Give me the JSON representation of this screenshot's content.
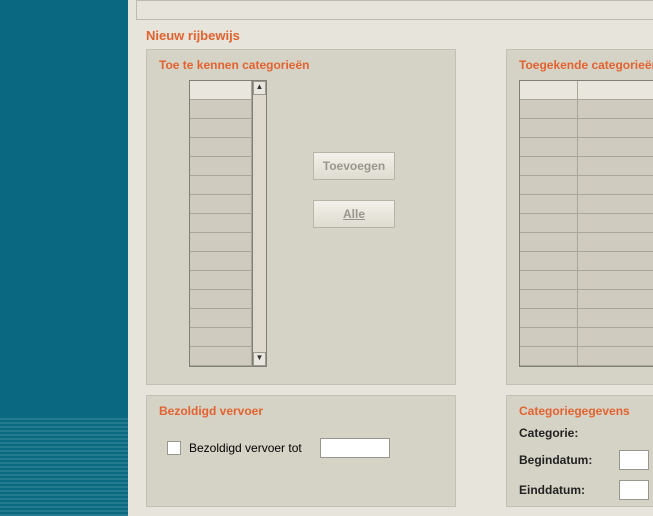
{
  "page": {
    "title": "Nieuw rijbewijs"
  },
  "left_panel": {
    "title": "Toe te kennen categorieën",
    "listbox": {
      "row_count": 15
    },
    "buttons": {
      "add": "Toevoegen",
      "all": "Alle"
    }
  },
  "right_panel": {
    "title": "Toegekende categorieën",
    "grid": {
      "row_count": 15,
      "col_count": 2
    }
  },
  "bottom_left": {
    "title": "Bezoldigd vervoer",
    "checkbox_label": "Bezoldigd vervoer tot",
    "date_value": ""
  },
  "bottom_right": {
    "title": "Categoriegegevens",
    "fields": {
      "category_label": "Categorie:",
      "start_label": "Begindatum:",
      "end_label": "Einddatum:"
    }
  },
  "colors": {
    "sidebar": "#0a6981",
    "accent": "#e4622f",
    "panel_bg": "#d5d3c6",
    "page_bg": "#e6e4db"
  }
}
